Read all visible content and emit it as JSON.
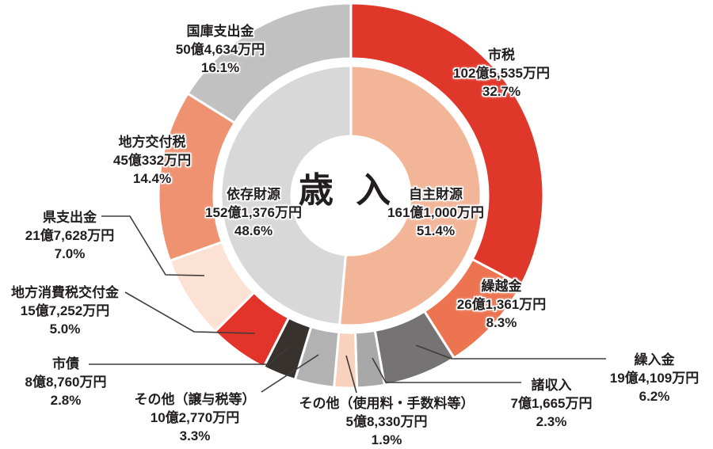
{
  "chart_data": {
    "type": "pie",
    "variant": "double-donut",
    "title": "歳 入",
    "unit": "万円",
    "legend": "none",
    "label_placement": "outside-with-leader-lines",
    "style": {
      "background": "#ffffff",
      "text_color": "#221e1f",
      "separator_color": "#ffffff",
      "leader_line_color": "#3f3b3c"
    },
    "inner_series": [
      {
        "label": "自主財源",
        "amount": "161億1,000万円",
        "percent": "51.4%",
        "value": 51.4,
        "color": "#f3b598"
      },
      {
        "label": "依存財源",
        "amount": "152億1,376万円",
        "percent": "48.6%",
        "value": 48.6,
        "color": "#d9d8d8"
      }
    ],
    "outer_series": [
      {
        "label": "市税",
        "amount": "102億5,535万円",
        "percent": "32.7%",
        "value": 32.7,
        "color": "#e0372b"
      },
      {
        "label": "繰越金",
        "amount": "26億1,361万円",
        "percent": "8.3%",
        "value": 8.3,
        "color": "#ed7450"
      },
      {
        "label": "繰入金",
        "amount": "19億4,109万円",
        "percent": "6.2%",
        "value": 6.2,
        "color": "#757373"
      },
      {
        "label": "諸収入",
        "amount": "7億1,665万円",
        "percent": "2.3%",
        "value": 2.3,
        "color": "#a9a8a8"
      },
      {
        "label": "その他（使用料・手数料等）",
        "amount": "5億8,330万円",
        "percent": "1.9%",
        "value": 1.9,
        "color": "#f8d2bc"
      },
      {
        "label": "その他（譲与税等）",
        "amount": "10億2,770万円",
        "percent": "3.3%",
        "value": 3.3,
        "color": "#b3b2b2"
      },
      {
        "label": "市債",
        "amount": "8億8,760万円",
        "percent": "2.8%",
        "value": 2.8,
        "color": "#38322f"
      },
      {
        "label": "地方消費税交付金",
        "amount": "15億7,252万円",
        "percent": "5.0%",
        "value": 5.0,
        "color": "#e2342b"
      },
      {
        "label": "県支出金",
        "amount": "21億7,628万円",
        "percent": "7.0%",
        "value": 7.0,
        "color": "#fbe2d4"
      },
      {
        "label": "地方交付税",
        "amount": "45億332万円",
        "percent": "14.4%",
        "value": 14.4,
        "color": "#ee9271"
      },
      {
        "label": "国庫支出金",
        "amount": "50億4,634万円",
        "percent": "16.1%",
        "value": 16.1,
        "color": "#c2c1c1"
      }
    ]
  }
}
